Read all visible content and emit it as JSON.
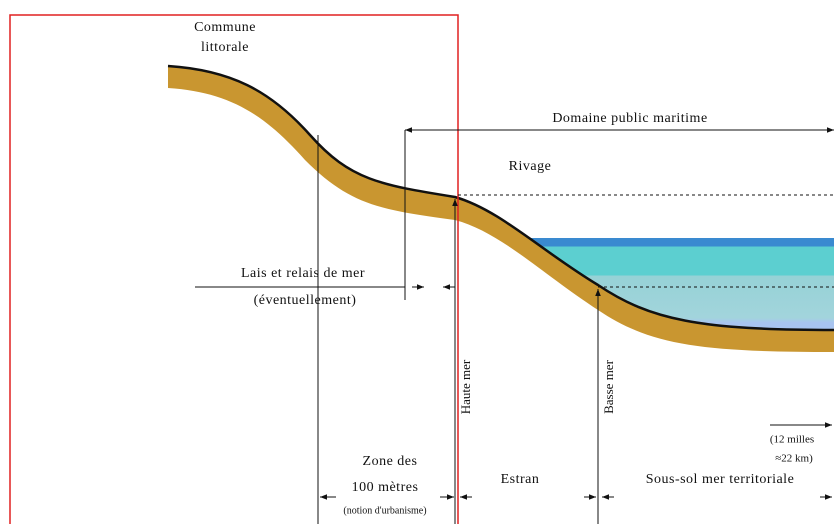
{
  "commune": {
    "lines": [
      "Commune",
      "littorale"
    ]
  },
  "domaine": "Domaine public maritime",
  "rivage": "Rivage",
  "lais": {
    "lines": [
      "Lais et relais de mer",
      "(éventuellement)"
    ]
  },
  "haute_mer": "Haute mer",
  "basse_mer": "Basse mer",
  "limite": {
    "lines": [
      "(12 milles",
      "≈22 km)"
    ]
  },
  "zone": {
    "lines": [
      "Zone des",
      "100 mètres",
      "(notion d'urbanisme)"
    ]
  },
  "estran": "Estran",
  "sous_sol": "Sous-sol mer territoriale"
}
